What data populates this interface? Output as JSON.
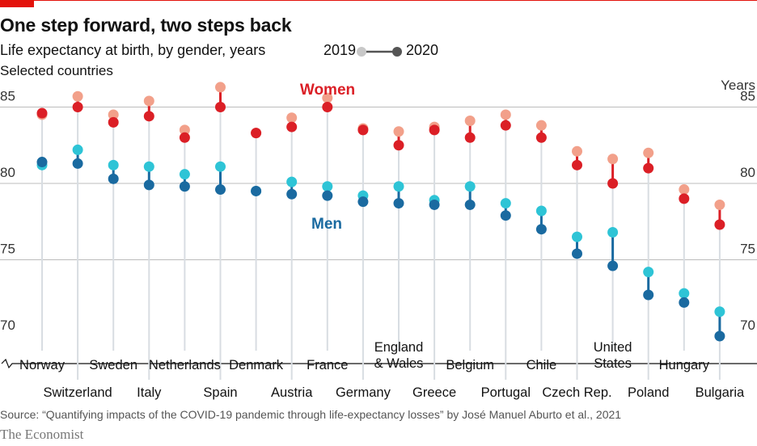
{
  "header": {
    "title": "One step forward, two steps back",
    "subtitle": "Life expectancy at birth, by gender, years",
    "subsubtitle": "Selected countries"
  },
  "legend": {
    "year_a": "2019",
    "year_b": "2020"
  },
  "footer": {
    "source": "Source: “Quantifying impacts of the COVID-19 pandemic through life-expectancy losses” by José Manuel Aburto et al., 2021",
    "brand": "The Economist"
  },
  "colors": {
    "accent": "#e3120b",
    "women_2019": "#f2a08a",
    "women_2020": "#db1f26",
    "men_2019": "#2ec4d6",
    "men_2020": "#1a6aa0",
    "stem": "#d8dde2",
    "axis": "#121212",
    "grid": "#bcbcbc"
  },
  "chart_data": {
    "type": "scatter",
    "title": "One step forward, two steps back",
    "subtitle": "Life expectancy at birth, by gender, years",
    "ylabel": "Years",
    "ylim": [
      70,
      87
    ],
    "yticks": [
      70,
      75,
      80,
      85
    ],
    "annotations": {
      "women": "Women",
      "men": "Men"
    },
    "categories": [
      "Norway",
      "Switzerland",
      "Sweden",
      "Italy",
      "Netherlands",
      "Spain",
      "Denmark",
      "Austria",
      "France",
      "Germany",
      "England & Wales",
      "Greece",
      "Belgium",
      "Portugal",
      "Chile",
      "Czech Rep.",
      "United States",
      "Poland",
      "Hungary",
      "Bulgaria"
    ],
    "label_lines": [
      [
        "Norway"
      ],
      [
        "Switzerland"
      ],
      [
        "Sweden"
      ],
      [
        "Italy"
      ],
      [
        "Netherlands"
      ],
      [
        "Spain"
      ],
      [
        "Denmark"
      ],
      [
        "Austria"
      ],
      [
        "France"
      ],
      [
        "Germany"
      ],
      [
        "England",
        "& Wales"
      ],
      [
        "Greece"
      ],
      [
        "Belgium"
      ],
      [
        "Portugal"
      ],
      [
        "Chile"
      ],
      [
        "Czech Rep."
      ],
      [
        "United",
        "States"
      ],
      [
        "Poland"
      ],
      [
        "Hungary"
      ],
      [
        "Bulgaria"
      ]
    ],
    "series": [
      {
        "name": "Women 2019",
        "values": [
          84.5,
          85.7,
          84.5,
          85.4,
          83.5,
          86.3,
          83.3,
          84.3,
          85.6,
          83.6,
          83.4,
          83.7,
          84.1,
          84.5,
          83.8,
          82.1,
          81.6,
          82.0,
          79.6,
          78.6
        ]
      },
      {
        "name": "Women 2020",
        "values": [
          84.6,
          85.0,
          84.0,
          84.4,
          83.0,
          85.0,
          83.3,
          83.7,
          85.0,
          83.5,
          82.5,
          83.5,
          83.0,
          83.8,
          83.0,
          81.2,
          80.0,
          81.0,
          79.0,
          77.3
        ]
      },
      {
        "name": "Men 2019",
        "values": [
          81.2,
          82.2,
          81.2,
          81.1,
          80.6,
          81.1,
          79.5,
          80.1,
          79.8,
          79.2,
          79.8,
          78.9,
          79.8,
          78.7,
          78.2,
          76.5,
          76.8,
          74.2,
          72.8,
          71.6
        ]
      },
      {
        "name": "Men 2020",
        "values": [
          81.4,
          81.3,
          80.3,
          79.9,
          79.8,
          79.6,
          79.5,
          79.3,
          79.2,
          78.8,
          78.7,
          78.6,
          78.6,
          77.9,
          77.0,
          75.4,
          74.6,
          72.7,
          72.2,
          70.0
        ]
      }
    ]
  }
}
